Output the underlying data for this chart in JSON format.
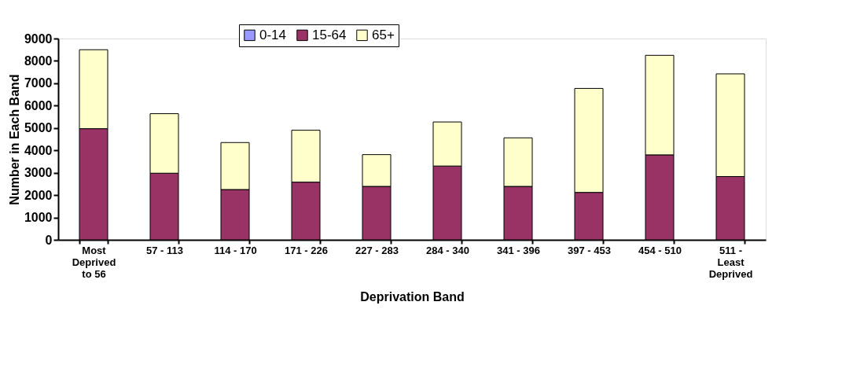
{
  "chart_data": {
    "type": "bar",
    "stacked": true,
    "xlabel": "Deprivation Band",
    "ylabel": "Number in Each Band",
    "categories": [
      "Most Deprived to 56",
      "57 - 113",
      "114 - 170",
      "171 - 226",
      "227 - 283",
      "284 - 340",
      "341 - 396",
      "397 - 453",
      "454 - 510",
      "511 - Least Deprived"
    ],
    "series": [
      {
        "name": "0-14",
        "color": "#9999ff",
        "values": [
          0,
          0,
          0,
          0,
          0,
          0,
          0,
          0,
          0,
          0
        ]
      },
      {
        "name": "15-64",
        "color": "#993366",
        "values": [
          4970,
          2980,
          2250,
          2580,
          2390,
          3300,
          2390,
          2120,
          3800,
          2830
        ]
      },
      {
        "name": "65+",
        "color": "#ffffcc",
        "values": [
          3530,
          2660,
          2100,
          2320,
          1420,
          1970,
          2170,
          4650,
          4450,
          4590
        ]
      }
    ],
    "ylim": [
      0,
      9000
    ],
    "yticks": [
      0,
      1000,
      2000,
      3000,
      4000,
      5000,
      6000,
      7000,
      8000,
      9000
    ],
    "grid": false,
    "legend": "top"
  }
}
